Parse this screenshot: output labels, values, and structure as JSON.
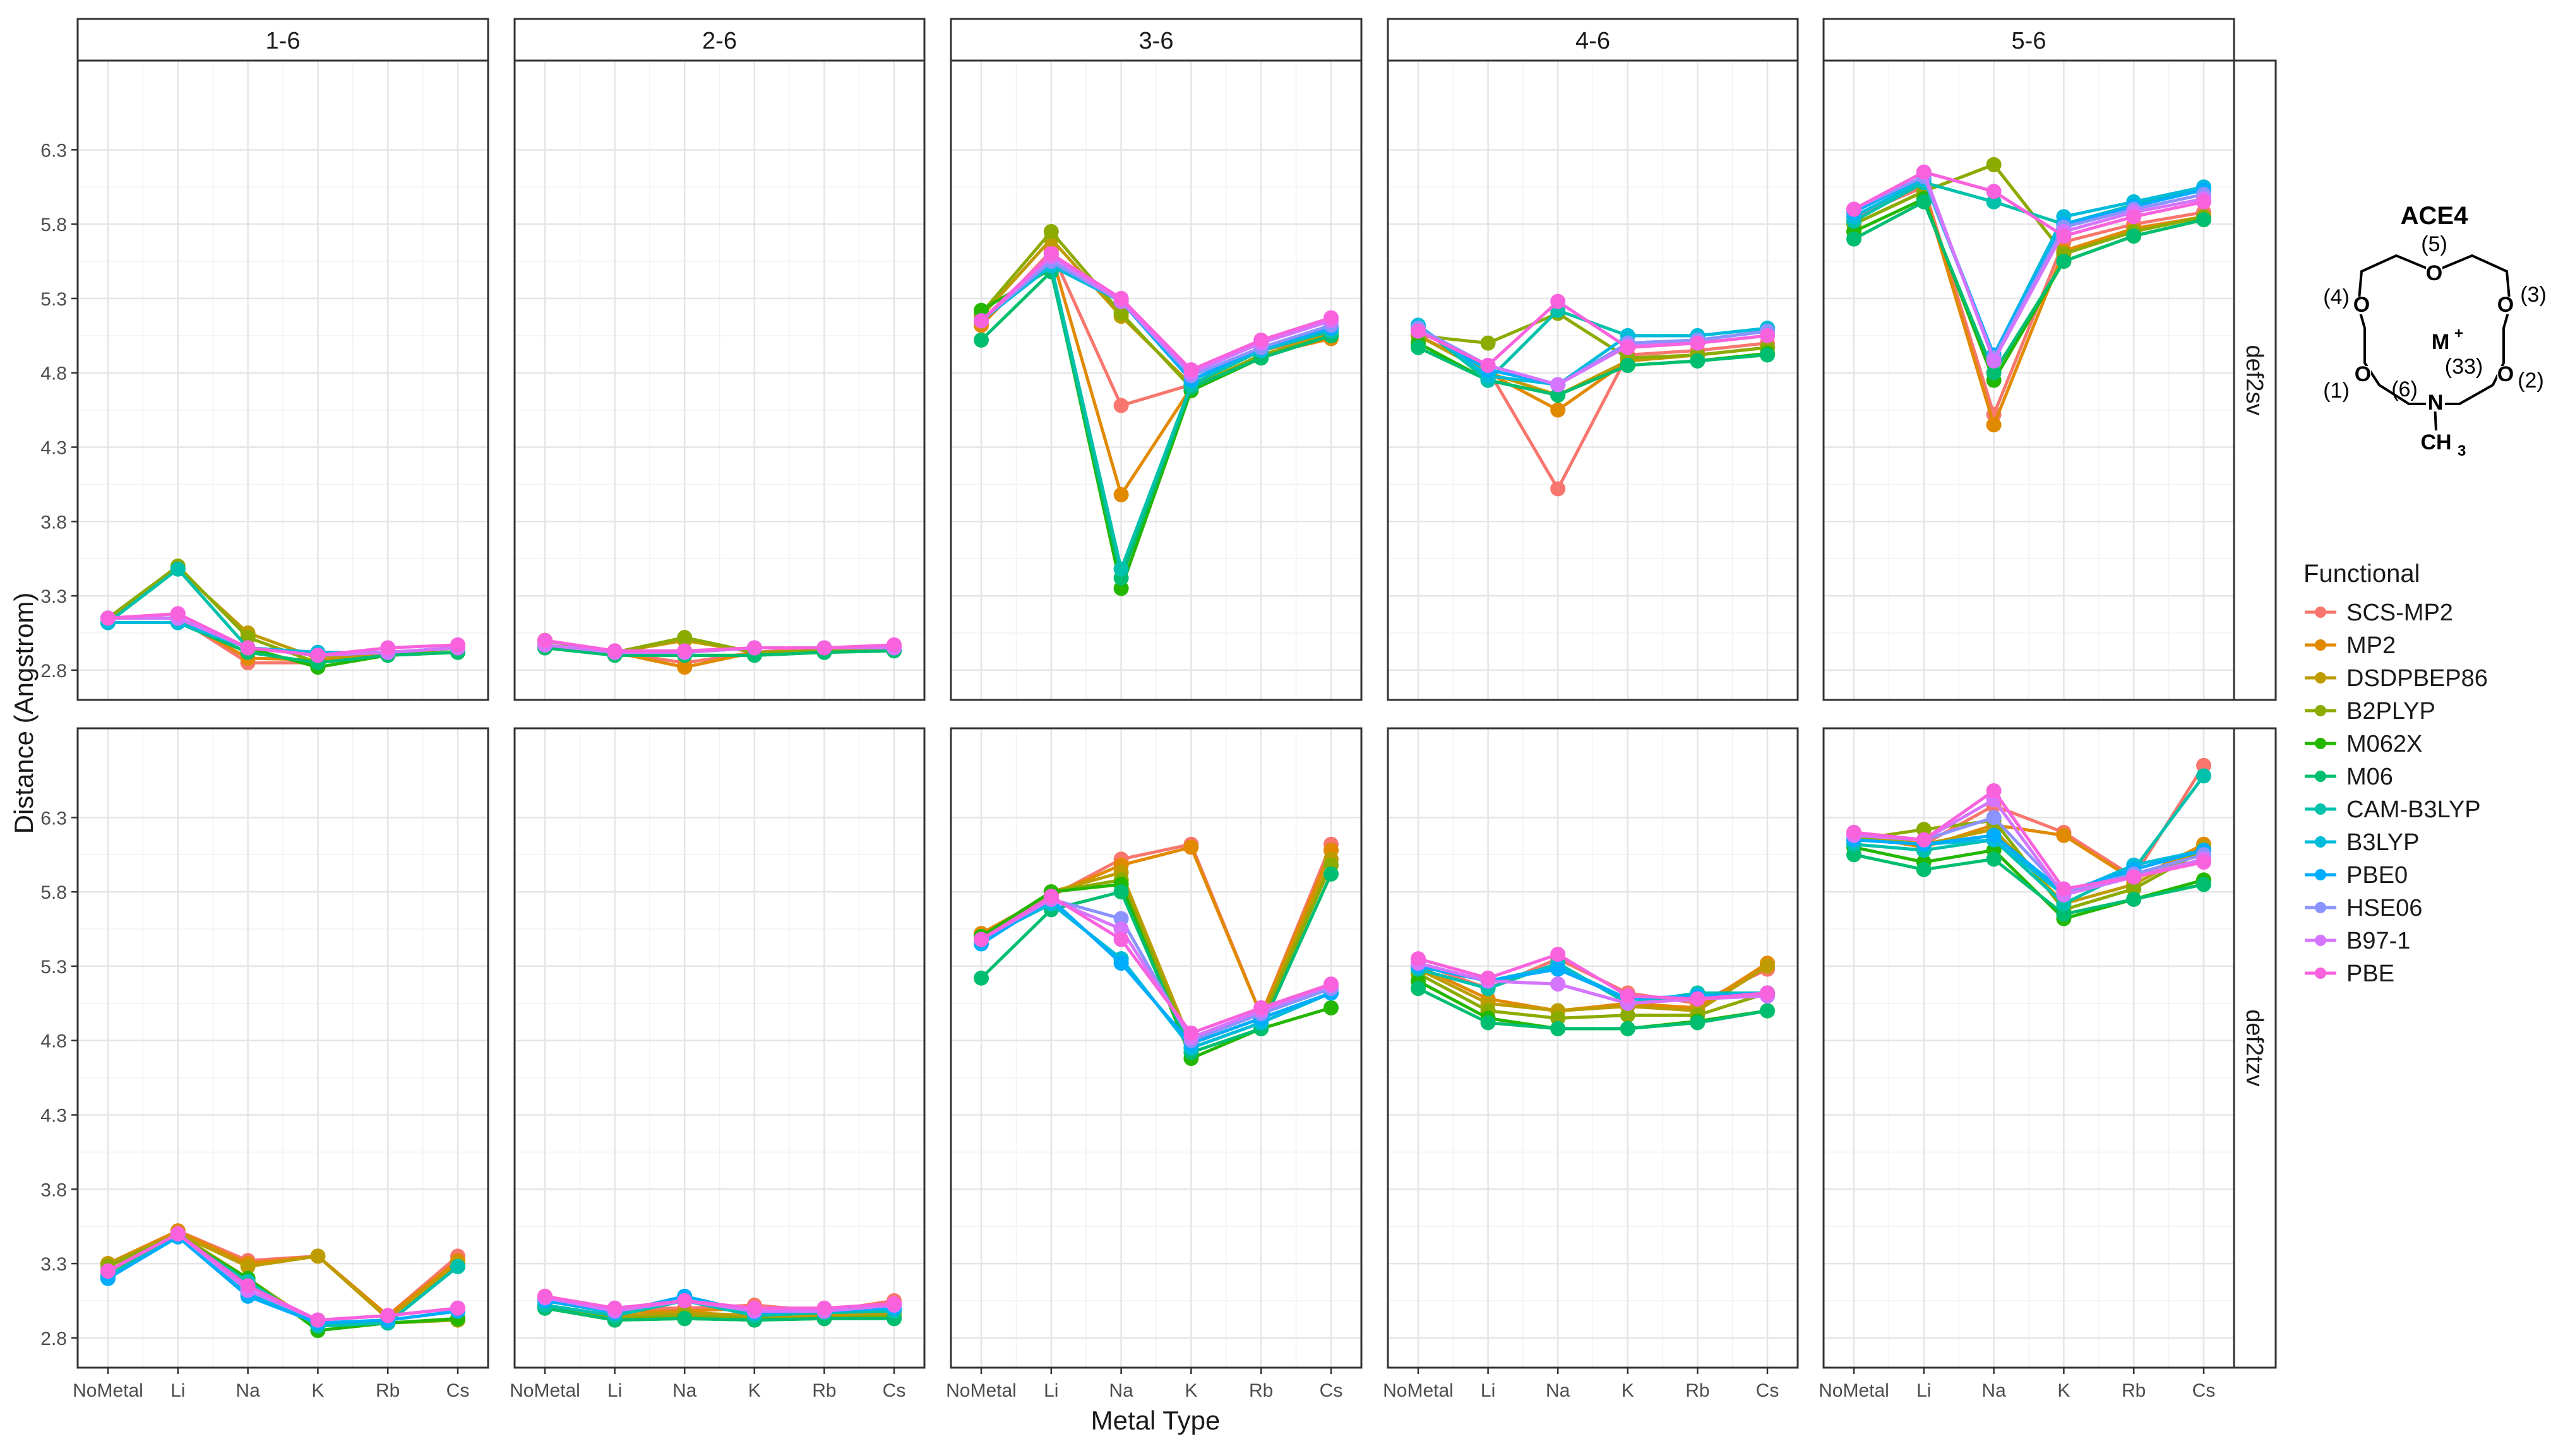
{
  "chart_data": {
    "type": "line",
    "xlabel": "Metal Type",
    "ylabel": "Distance (Angstrom)",
    "categories": [
      "NoMetal",
      "Li",
      "Na",
      "K",
      "Rb",
      "Cs"
    ],
    "ylim": [
      2.6,
      6.9
    ],
    "yticks": [
      2.8,
      3.3,
      3.8,
      4.3,
      4.8,
      5.3,
      5.8,
      6.3
    ],
    "ytick_labels": [
      "2.8",
      "3.3",
      "3.8",
      "4.3",
      "4.8",
      "5.3",
      "5.8",
      "6.3"
    ],
    "col_facets": [
      "1-6",
      "2-6",
      "3-6",
      "4-6",
      "5-6"
    ],
    "row_facets": [
      "def2sv",
      "def2tzv"
    ],
    "legend": {
      "title": "Functional",
      "position": "right",
      "entries": [
        {
          "name": "SCS-MP2",
          "color": "#F8766D"
        },
        {
          "name": "MP2",
          "color": "#E18A00"
        },
        {
          "name": "DSDPBEP86",
          "color": "#BE9C00"
        },
        {
          "name": "B2PLYP",
          "color": "#8CAB00"
        },
        {
          "name": "M062X",
          "color": "#24B700"
        },
        {
          "name": "M06",
          "color": "#00BE70"
        },
        {
          "name": "CAM-B3LYP",
          "color": "#00C1AB"
        },
        {
          "name": "B3LYP",
          "color": "#00BBDA"
        },
        {
          "name": "PBE0",
          "color": "#00ACFC"
        },
        {
          "name": "HSE06",
          "color": "#8B93FF"
        },
        {
          "name": "B97-1",
          "color": "#D575FE"
        },
        {
          "name": "PBE",
          "color": "#F962DD"
        }
      ]
    },
    "panels": [
      {
        "col": "1-6",
        "row": "def2sv",
        "series": [
          [
            3.15,
            3.15,
            2.85,
            2.85,
            2.92,
            2.95
          ],
          [
            3.15,
            3.15,
            2.88,
            2.87,
            2.92,
            2.95
          ],
          [
            3.15,
            3.48,
            3.05,
            2.88,
            2.92,
            2.95
          ],
          [
            3.15,
            3.5,
            3.02,
            2.85,
            2.9,
            2.95
          ],
          [
            3.12,
            3.12,
            2.95,
            2.82,
            2.9,
            2.92
          ],
          [
            3.12,
            3.12,
            2.92,
            2.85,
            2.9,
            2.92
          ],
          [
            3.12,
            3.48,
            2.95,
            2.9,
            2.92,
            2.95
          ],
          [
            3.12,
            3.12,
            2.95,
            2.92,
            2.92,
            2.95
          ],
          [
            3.15,
            3.15,
            2.95,
            2.9,
            2.92,
            2.95
          ],
          [
            3.15,
            3.15,
            2.95,
            2.9,
            2.92,
            2.95
          ],
          [
            3.15,
            3.15,
            2.95,
            2.9,
            2.92,
            2.95
          ],
          [
            3.15,
            3.18,
            2.95,
            2.9,
            2.95,
            2.97
          ]
        ]
      },
      {
        "col": "2-6",
        "row": "def2sv",
        "series": [
          [
            3.0,
            2.92,
            2.85,
            2.92,
            2.95,
            2.95
          ],
          [
            3.0,
            2.92,
            2.82,
            2.92,
            2.93,
            2.95
          ],
          [
            3.0,
            2.92,
            3.0,
            2.92,
            2.93,
            2.95
          ],
          [
            3.0,
            2.92,
            3.02,
            2.92,
            2.93,
            2.95
          ],
          [
            2.95,
            2.9,
            2.9,
            2.9,
            2.92,
            2.93
          ],
          [
            2.95,
            2.9,
            2.9,
            2.9,
            2.92,
            2.93
          ],
          [
            2.97,
            2.92,
            2.92,
            2.95,
            2.95,
            2.95
          ],
          [
            2.97,
            2.92,
            2.92,
            2.95,
            2.95,
            2.95
          ],
          [
            2.97,
            2.92,
            2.92,
            2.95,
            2.95,
            2.95
          ],
          [
            2.97,
            2.92,
            2.92,
            2.95,
            2.95,
            2.95
          ],
          [
            2.97,
            2.92,
            2.92,
            2.95,
            2.95,
            2.95
          ],
          [
            3.0,
            2.93,
            2.93,
            2.95,
            2.95,
            2.97
          ]
        ]
      },
      {
        "col": "3-6",
        "row": "def2sv",
        "series": [
          [
            5.12,
            5.62,
            4.58,
            4.72,
            4.95,
            5.05
          ],
          [
            5.12,
            5.6,
            3.98,
            4.7,
            4.92,
            5.03
          ],
          [
            5.18,
            5.7,
            5.18,
            4.72,
            4.95,
            5.07
          ],
          [
            5.2,
            5.75,
            5.2,
            4.7,
            4.92,
            5.05
          ],
          [
            5.22,
            5.5,
            3.35,
            4.68,
            4.9,
            5.05
          ],
          [
            5.02,
            5.48,
            3.42,
            4.7,
            4.9,
            5.05
          ],
          [
            5.15,
            5.52,
            3.48,
            4.72,
            4.95,
            5.08
          ],
          [
            5.15,
            5.52,
            5.28,
            4.75,
            4.95,
            5.1
          ],
          [
            5.15,
            5.55,
            5.28,
            4.75,
            4.97,
            5.1
          ],
          [
            5.15,
            5.55,
            5.28,
            4.78,
            4.97,
            5.12
          ],
          [
            5.15,
            5.58,
            5.28,
            4.8,
            5.0,
            5.15
          ],
          [
            5.15,
            5.6,
            5.3,
            4.82,
            5.02,
            5.17
          ]
        ]
      },
      {
        "col": "4-6",
        "row": "def2sv",
        "series": [
          [
            5.05,
            4.82,
            4.02,
            4.92,
            4.95,
            5.0
          ],
          [
            5.05,
            4.8,
            4.55,
            4.88,
            4.92,
            4.97
          ],
          [
            5.05,
            4.8,
            4.65,
            4.88,
            4.92,
            4.97
          ],
          [
            5.05,
            5.0,
            5.2,
            4.9,
            4.92,
            4.97
          ],
          [
            5.0,
            4.75,
            4.65,
            4.85,
            4.88,
            4.93
          ],
          [
            4.97,
            4.75,
            4.65,
            4.85,
            4.88,
            4.92
          ],
          [
            5.12,
            4.75,
            5.22,
            5.05,
            5.05,
            5.1
          ],
          [
            5.12,
            4.78,
            4.72,
            5.05,
            5.05,
            5.1
          ],
          [
            5.1,
            4.82,
            4.72,
            5.0,
            5.02,
            5.08
          ],
          [
            5.1,
            4.85,
            4.72,
            5.0,
            5.02,
            5.08
          ],
          [
            5.08,
            4.85,
            4.72,
            4.98,
            5.0,
            5.05
          ],
          [
            5.08,
            4.85,
            5.28,
            4.97,
            5.0,
            5.05
          ]
        ]
      },
      {
        "col": "5-6",
        "row": "def2sv",
        "series": [
          [
            5.85,
            6.05,
            4.52,
            5.68,
            5.8,
            5.88
          ],
          [
            5.8,
            6.02,
            4.45,
            5.62,
            5.77,
            5.85
          ],
          [
            5.8,
            6.02,
            6.2,
            5.6,
            5.75,
            5.85
          ],
          [
            5.8,
            6.02,
            6.2,
            5.6,
            5.75,
            5.85
          ],
          [
            5.75,
            5.97,
            4.75,
            5.55,
            5.72,
            5.83
          ],
          [
            5.7,
            5.95,
            4.8,
            5.55,
            5.72,
            5.83
          ],
          [
            5.82,
            6.08,
            5.95,
            5.8,
            5.93,
            6.03
          ],
          [
            5.85,
            6.1,
            4.92,
            5.85,
            5.95,
            6.05
          ],
          [
            5.88,
            6.12,
            4.92,
            5.8,
            5.92,
            6.03
          ],
          [
            5.9,
            6.12,
            4.9,
            5.78,
            5.9,
            6.0
          ],
          [
            5.9,
            6.15,
            4.88,
            5.75,
            5.88,
            5.97
          ],
          [
            5.9,
            6.15,
            6.02,
            5.72,
            5.85,
            5.95
          ]
        ]
      },
      {
        "col": "1-6",
        "row": "def2tzv",
        "series": [
          [
            3.3,
            3.52,
            3.32,
            3.35,
            2.95,
            3.35
          ],
          [
            3.3,
            3.52,
            3.3,
            3.35,
            2.95,
            3.32
          ],
          [
            3.3,
            3.5,
            3.28,
            3.35,
            2.93,
            3.3
          ],
          [
            3.28,
            3.5,
            3.2,
            2.88,
            2.9,
            2.92
          ],
          [
            3.25,
            3.48,
            3.2,
            2.85,
            2.9,
            2.93
          ],
          [
            3.22,
            3.48,
            3.18,
            2.88,
            2.9,
            3.28
          ],
          [
            3.22,
            3.48,
            3.18,
            2.88,
            2.9,
            3.28
          ],
          [
            3.2,
            3.48,
            3.1,
            2.9,
            2.92,
            2.98
          ],
          [
            3.2,
            3.48,
            3.08,
            2.9,
            2.92,
            2.98
          ],
          [
            3.25,
            3.5,
            3.12,
            2.92,
            2.95,
            3.0
          ],
          [
            3.25,
            3.5,
            3.12,
            2.92,
            2.95,
            3.0
          ],
          [
            3.25,
            3.5,
            3.15,
            2.92,
            2.95,
            3.0
          ]
        ]
      },
      {
        "col": "2-6",
        "row": "def2tzv",
        "series": [
          [
            3.08,
            3.0,
            3.0,
            3.02,
            2.98,
            3.05
          ],
          [
            3.05,
            2.98,
            2.98,
            3.0,
            2.97,
            3.02
          ],
          [
            3.02,
            2.95,
            2.97,
            2.95,
            2.95,
            2.97
          ],
          [
            3.02,
            2.93,
            2.95,
            2.93,
            2.93,
            2.95
          ],
          [
            3.0,
            2.92,
            2.93,
            2.92,
            2.93,
            2.93
          ],
          [
            3.0,
            2.92,
            2.93,
            2.92,
            2.93,
            2.93
          ],
          [
            3.02,
            2.95,
            3.05,
            2.95,
            2.97,
            2.98
          ],
          [
            3.05,
            2.97,
            3.08,
            2.97,
            2.98,
            3.0
          ],
          [
            3.05,
            2.97,
            3.08,
            2.97,
            2.98,
            3.0
          ],
          [
            3.07,
            2.98,
            3.05,
            2.98,
            2.98,
            3.02
          ],
          [
            3.07,
            2.98,
            3.05,
            2.98,
            2.98,
            3.02
          ],
          [
            3.08,
            3.0,
            3.05,
            3.0,
            3.0,
            3.03
          ]
        ]
      },
      {
        "col": "3-6",
        "row": "def2tzv",
        "series": [
          [
            5.5,
            5.77,
            6.02,
            6.12,
            4.97,
            6.12
          ],
          [
            5.52,
            5.78,
            5.98,
            6.1,
            4.97,
            6.08
          ],
          [
            5.5,
            5.8,
            5.93,
            4.78,
            4.95,
            6.02
          ],
          [
            5.48,
            5.8,
            5.88,
            4.75,
            4.92,
            5.98
          ],
          [
            5.5,
            5.8,
            5.85,
            4.68,
            4.88,
            5.02
          ],
          [
            5.22,
            5.68,
            5.8,
            4.72,
            4.88,
            5.92
          ],
          [
            5.48,
            5.72,
            5.35,
            4.75,
            4.92,
            5.12
          ],
          [
            5.48,
            5.72,
            5.35,
            4.75,
            4.92,
            5.12
          ],
          [
            5.45,
            5.75,
            5.32,
            4.78,
            4.95,
            5.12
          ],
          [
            5.48,
            5.75,
            5.62,
            4.8,
            4.98,
            5.15
          ],
          [
            5.48,
            5.75,
            5.55,
            4.82,
            5.0,
            5.17
          ],
          [
            5.48,
            5.77,
            5.48,
            4.85,
            5.02,
            5.18
          ]
        ]
      },
      {
        "col": "4-6",
        "row": "def2tzv",
        "series": [
          [
            5.32,
            5.15,
            5.35,
            5.12,
            5.05,
            5.28
          ],
          [
            5.3,
            5.08,
            5.0,
            5.05,
            5.02,
            5.32
          ],
          [
            5.28,
            5.05,
            5.0,
            5.03,
            5.0,
            5.3
          ],
          [
            5.25,
            5.0,
            4.95,
            4.97,
            4.97,
            5.12
          ],
          [
            5.2,
            4.95,
            4.88,
            4.88,
            4.93,
            5.0
          ],
          [
            5.15,
            4.92,
            4.88,
            4.88,
            4.92,
            5.0
          ],
          [
            5.28,
            5.15,
            5.32,
            5.05,
            5.12,
            5.12
          ],
          [
            5.3,
            5.2,
            5.3,
            5.08,
            5.1,
            5.12
          ],
          [
            5.3,
            5.2,
            5.28,
            5.08,
            5.1,
            5.12
          ],
          [
            5.32,
            5.2,
            5.18,
            5.05,
            5.08,
            5.1
          ],
          [
            5.32,
            5.2,
            5.18,
            5.05,
            5.08,
            5.1
          ],
          [
            5.35,
            5.22,
            5.38,
            5.1,
            5.08,
            5.12
          ]
        ]
      },
      {
        "col": "5-6",
        "row": "def2tzv",
        "series": [
          [
            6.2,
            6.12,
            6.38,
            6.2,
            5.9,
            6.65
          ],
          [
            6.18,
            6.1,
            6.25,
            6.18,
            5.88,
            6.12
          ],
          [
            6.18,
            6.12,
            6.22,
            5.72,
            5.85,
            6.1
          ],
          [
            6.15,
            6.22,
            6.28,
            5.68,
            5.82,
            6.08
          ],
          [
            6.1,
            6.0,
            6.08,
            5.62,
            5.75,
            5.88
          ],
          [
            6.05,
            5.95,
            6.02,
            5.65,
            5.75,
            5.85
          ],
          [
            6.12,
            6.08,
            6.15,
            5.72,
            5.95,
            6.58
          ],
          [
            6.15,
            6.12,
            6.15,
            5.78,
            5.98,
            6.08
          ],
          [
            6.15,
            6.12,
            6.18,
            5.8,
            5.95,
            6.08
          ],
          [
            6.18,
            6.15,
            6.3,
            5.8,
            5.92,
            6.05
          ],
          [
            6.18,
            6.15,
            6.42,
            5.78,
            5.9,
            6.02
          ],
          [
            6.2,
            6.15,
            6.48,
            5.82,
            5.9,
            6.0
          ]
        ]
      }
    ]
  },
  "molecule": {
    "title": "ACE4",
    "atoms": [
      "(5)",
      "(4)",
      "(3)",
      "(2)",
      "(1)",
      "(6)",
      "M",
      "+",
      "(33)",
      "N",
      "CH",
      "3",
      "O",
      "O",
      "O",
      "O",
      "O"
    ]
  }
}
